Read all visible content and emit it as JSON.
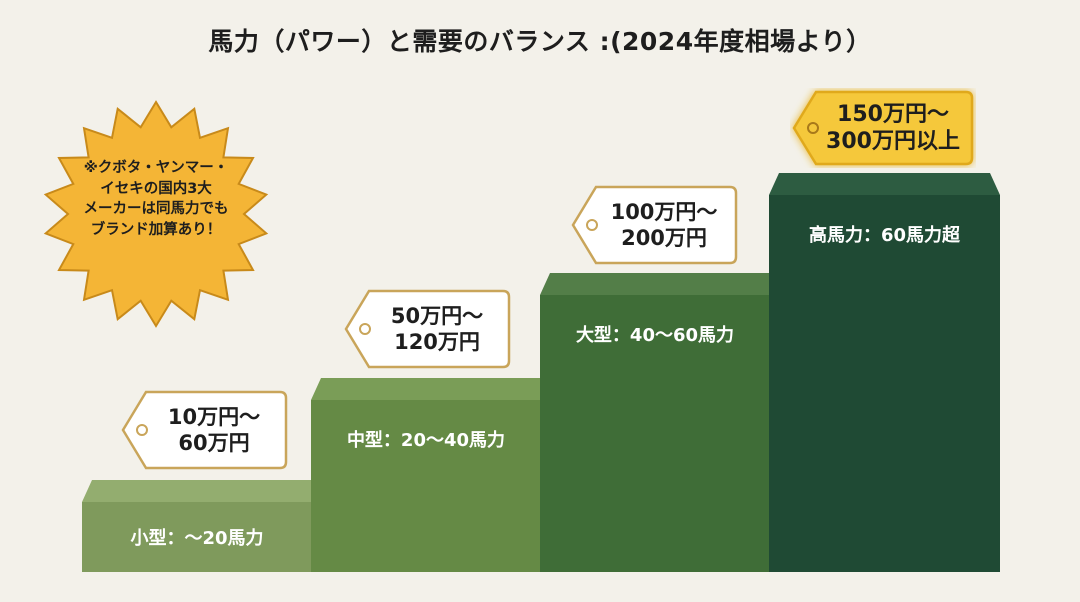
{
  "title": "馬力（パワー）と需要のバランス :(2024年度相場より）",
  "note": {
    "lines": [
      "※クボタ・ヤンマー・",
      "イセキの国内3大",
      "メーカーは同馬力でも",
      "ブランド加算あり！"
    ]
  },
  "steps": [
    {
      "label": "小型：〜20馬力",
      "price_line1": "10万円〜",
      "price_line2": "60万円"
    },
    {
      "label": "中型：20〜40馬力",
      "price_line1": "50万円〜",
      "price_line2": "120万円"
    },
    {
      "label": "大型：40〜60馬力",
      "price_line1": "100万円〜",
      "price_line2": "200万円"
    },
    {
      "label": "高馬力：60馬力超",
      "price_line1": "150万円〜",
      "price_line2": "300万円以上"
    }
  ],
  "colors": {
    "background": "#f3f1ea",
    "step_small": "#7f9a5c",
    "step_medium": "#658a45",
    "step_large": "#3f6d37",
    "step_high": "#1f4a34",
    "tag_fill": "#ffffff",
    "tag_border": "#c9a55a",
    "tag_highlight": "#f5c83a",
    "burst_fill": "#f4b536",
    "burst_border": "#c88a1a"
  },
  "icons": [
    "price-tag-icon",
    "starburst-icon"
  ]
}
